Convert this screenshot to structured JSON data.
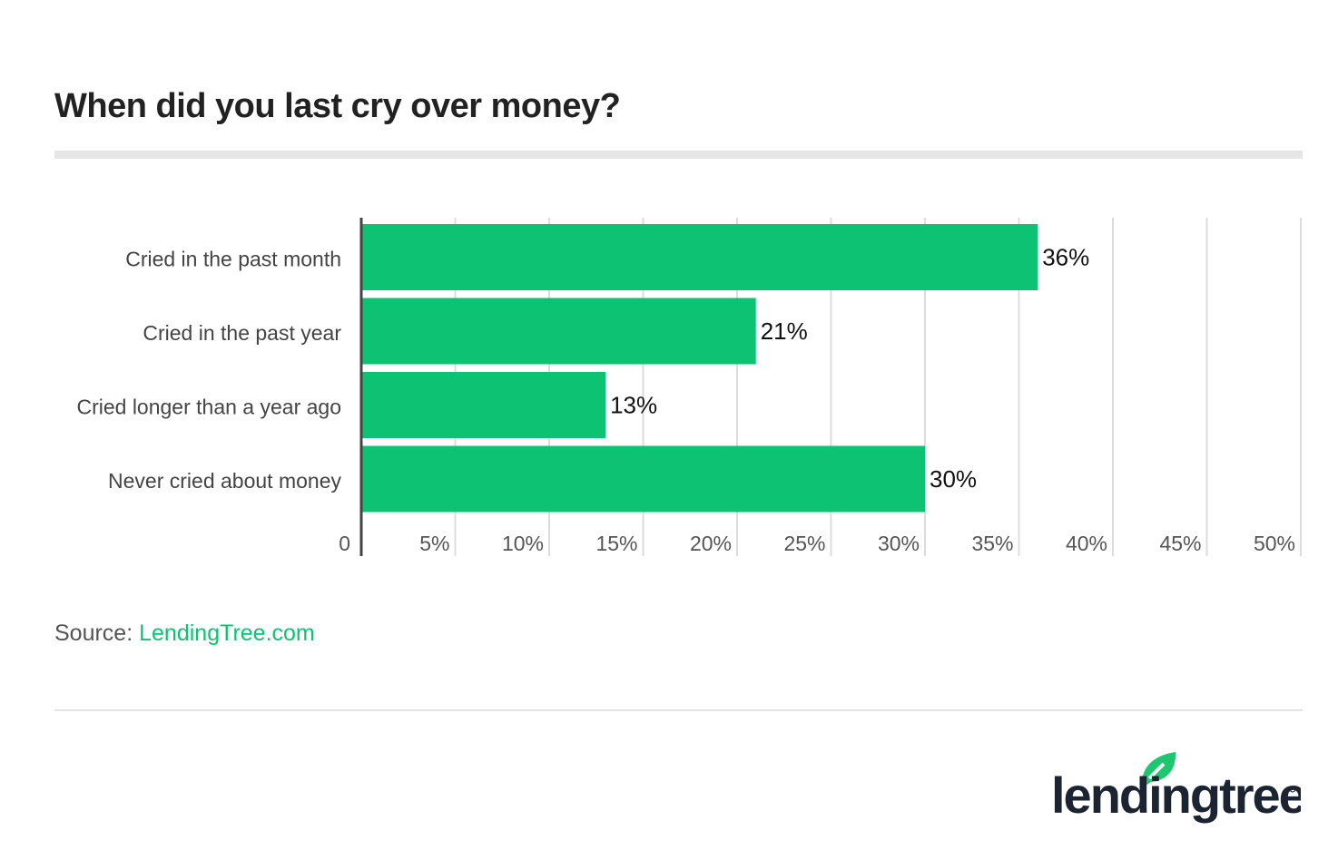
{
  "chart_data": {
    "type": "bar",
    "orientation": "horizontal",
    "title": "When did you last cry over money?",
    "categories": [
      "Cried in the past month",
      "Cried in the past year",
      "Cried longer than a year ago",
      "Never cried about money"
    ],
    "values": [
      36,
      21,
      13,
      30
    ],
    "data_labels": [
      "36%",
      "21%",
      "13%",
      "30%"
    ],
    "xlim": [
      0,
      50
    ],
    "xticks": [
      0,
      5,
      10,
      15,
      20,
      25,
      30,
      35,
      40,
      45,
      50
    ],
    "xtick_labels": [
      "0",
      "5%",
      "10%",
      "15%",
      "20%",
      "25%",
      "30%",
      "35%",
      "40%",
      "45%",
      "50%"
    ],
    "grid": true,
    "bar_color": "#0ec274",
    "xlabel": "",
    "ylabel": ""
  },
  "source": {
    "label": "Source:",
    "link": "LendingTree.com"
  },
  "logo": {
    "text": "lendingtree",
    "leaf_color": "#1ec670",
    "text_color": "#1b2430"
  }
}
